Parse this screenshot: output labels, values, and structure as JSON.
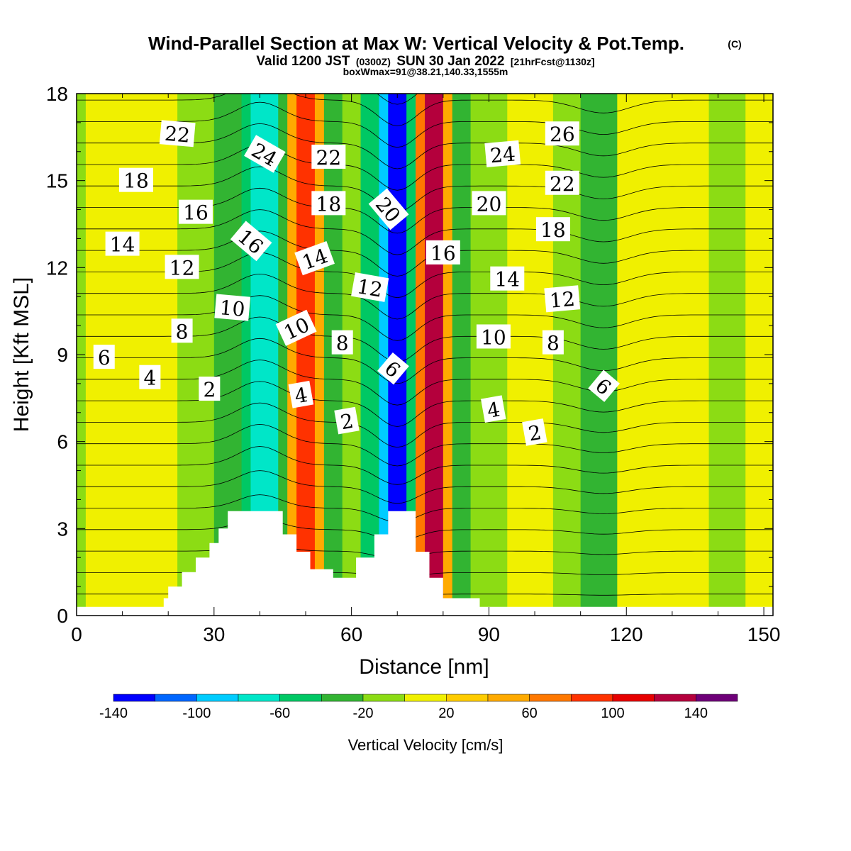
{
  "header": {
    "title": "Wind-Parallel Section at Max W: Vertical Velocity & Pot.Temp.",
    "title_mark": "(C)",
    "valid_prefix": "Valid 1200 JST",
    "valid_utc": "(0300Z)",
    "valid_date": "SUN 30 Jan 2022",
    "forecast": "[21hrFcst@1130z]",
    "box_info": "boxWmax=91@38.21,140.33,1555m"
  },
  "chart_data": {
    "type": "heatmap",
    "xlabel": "Distance [nm]",
    "ylabel": "Height [Kft MSL]",
    "xlim": [
      0,
      152
    ],
    "ylim": [
      0,
      18
    ],
    "x_ticks": [
      0,
      30,
      60,
      90,
      120,
      150
    ],
    "y_ticks": [
      0,
      3,
      6,
      9,
      12,
      15,
      18
    ],
    "colorbar": {
      "title": "Vertical Velocity [cm/s]",
      "levels": [
        -140,
        -120,
        -100,
        -80,
        -60,
        -40,
        -20,
        0,
        20,
        40,
        60,
        80,
        100,
        120,
        140,
        160
      ],
      "colors": [
        "#0000ff",
        "#0066ff",
        "#00ccff",
        "#00e6c8",
        "#00c864",
        "#32b432",
        "#8cdc14",
        "#f0f000",
        "#ffcc00",
        "#ffaa00",
        "#ff7800",
        "#ff3200",
        "#e60000",
        "#b4003c",
        "#6e0078"
      ],
      "tick_labels": [
        "-140",
        "-100",
        "-60",
        "-20",
        "20",
        "60",
        "100",
        "140"
      ]
    },
    "velocity_bands": [
      {
        "x": [
          0,
          2
        ],
        "w": -20
      },
      {
        "x": [
          2,
          14
        ],
        "w": 5
      },
      {
        "x": [
          14,
          22
        ],
        "w": 5
      },
      {
        "x": [
          22,
          30
        ],
        "w": -10
      },
      {
        "x": [
          30,
          36
        ],
        "w": -30
      },
      {
        "x": [
          36,
          38
        ],
        "w": -50
      },
      {
        "x": [
          38,
          44
        ],
        "w": -70
      },
      {
        "x": [
          44,
          46
        ],
        "w": -30
      },
      {
        "x": [
          46,
          48
        ],
        "w": 50
      },
      {
        "x": [
          48,
          52
        ],
        "w": 90
      },
      {
        "x": [
          52,
          54
        ],
        "w": 50
      },
      {
        "x": [
          54,
          58
        ],
        "w": -30
      },
      {
        "x": [
          58,
          62
        ],
        "w": -10
      },
      {
        "x": [
          62,
          66
        ],
        "w": -50
      },
      {
        "x": [
          66,
          68
        ],
        "w": -90
      },
      {
        "x": [
          68,
          72
        ],
        "w": -130
      },
      {
        "x": [
          72,
          74
        ],
        "w": -60
      },
      {
        "x": [
          74,
          76
        ],
        "w": 70
      },
      {
        "x": [
          76,
          80
        ],
        "w": 130
      },
      {
        "x": [
          80,
          82
        ],
        "w": 50
      },
      {
        "x": [
          82,
          86
        ],
        "w": -30
      },
      {
        "x": [
          86,
          94
        ],
        "w": -10
      },
      {
        "x": [
          94,
          104
        ],
        "w": 15
      },
      {
        "x": [
          104,
          110
        ],
        "w": -10
      },
      {
        "x": [
          110,
          118
        ],
        "w": -30
      },
      {
        "x": [
          118,
          126
        ],
        "w": 5
      },
      {
        "x": [
          126,
          138
        ],
        "w": 10
      },
      {
        "x": [
          138,
          146
        ],
        "w": -15
      },
      {
        "x": [
          146,
          152
        ],
        "w": 5
      }
    ],
    "terrain": [
      [
        0,
        0.3
      ],
      [
        19,
        0.3
      ],
      [
        19,
        0.6
      ],
      [
        20,
        0.6
      ],
      [
        20,
        1.0
      ],
      [
        23,
        1.0
      ],
      [
        23,
        1.5
      ],
      [
        26,
        1.5
      ],
      [
        26,
        2.0
      ],
      [
        29,
        2.0
      ],
      [
        29,
        2.5
      ],
      [
        31,
        2.5
      ],
      [
        31,
        3.0
      ],
      [
        33,
        3.0
      ],
      [
        33,
        3.6
      ],
      [
        36,
        3.6
      ],
      [
        36,
        3.6
      ],
      [
        45,
        3.6
      ],
      [
        45,
        2.8
      ],
      [
        48,
        2.8
      ],
      [
        48,
        2.2
      ],
      [
        51,
        2.2
      ],
      [
        51,
        1.6
      ],
      [
        56,
        1.6
      ],
      [
        56,
        1.3
      ],
      [
        61,
        1.3
      ],
      [
        61,
        2.0
      ],
      [
        65,
        2.0
      ],
      [
        65,
        2.8
      ],
      [
        68,
        2.8
      ],
      [
        68,
        3.6
      ],
      [
        74,
        3.6
      ],
      [
        74,
        2.2
      ],
      [
        77,
        2.2
      ],
      [
        77,
        1.3
      ],
      [
        80,
        1.3
      ],
      [
        80,
        0.6
      ],
      [
        88,
        0.6
      ],
      [
        88,
        0.3
      ],
      [
        152,
        0.3
      ]
    ],
    "contour_labels": [
      {
        "text": "22",
        "x": 22,
        "y": 16.6,
        "angle": 5
      },
      {
        "text": "24",
        "x": 41,
        "y": 15.9,
        "angle": 30
      },
      {
        "text": "22",
        "x": 55,
        "y": 15.8,
        "angle": 0
      },
      {
        "text": "24",
        "x": 93,
        "y": 15.9,
        "angle": -5
      },
      {
        "text": "26",
        "x": 106,
        "y": 16.6,
        "angle": 0
      },
      {
        "text": "18",
        "x": 13,
        "y": 15.0,
        "angle": 0
      },
      {
        "text": "16",
        "x": 26,
        "y": 13.9,
        "angle": 0
      },
      {
        "text": "18",
        "x": 55,
        "y": 14.2,
        "angle": 0
      },
      {
        "text": "20",
        "x": 68,
        "y": 14.0,
        "angle": 50
      },
      {
        "text": "20",
        "x": 90,
        "y": 14.2,
        "angle": 0
      },
      {
        "text": "22",
        "x": 106,
        "y": 14.9,
        "angle": 0
      },
      {
        "text": "14",
        "x": 10,
        "y": 12.8,
        "angle": 0
      },
      {
        "text": "16",
        "x": 38,
        "y": 12.9,
        "angle": 40
      },
      {
        "text": "18",
        "x": 104,
        "y": 13.3,
        "angle": 0
      },
      {
        "text": "12",
        "x": 23,
        "y": 12.0,
        "angle": 0
      },
      {
        "text": "14",
        "x": 52,
        "y": 12.3,
        "angle": -20
      },
      {
        "text": "16",
        "x": 80,
        "y": 12.5,
        "angle": 0
      },
      {
        "text": "14",
        "x": 94,
        "y": 11.6,
        "angle": 0
      },
      {
        "text": "12",
        "x": 64,
        "y": 11.3,
        "angle": 10
      },
      {
        "text": "12",
        "x": 106,
        "y": 10.9,
        "angle": -5
      },
      {
        "text": "10",
        "x": 34,
        "y": 10.6,
        "angle": 5
      },
      {
        "text": "10",
        "x": 48,
        "y": 9.9,
        "angle": -25
      },
      {
        "text": "8",
        "x": 23,
        "y": 9.8,
        "angle": 0
      },
      {
        "text": "10",
        "x": 91,
        "y": 9.6,
        "angle": 0
      },
      {
        "text": "8",
        "x": 58,
        "y": 9.4,
        "angle": 0
      },
      {
        "text": "8",
        "x": 104,
        "y": 9.4,
        "angle": 0
      },
      {
        "text": "6",
        "x": 6,
        "y": 8.9,
        "angle": 0
      },
      {
        "text": "6",
        "x": 69,
        "y": 8.5,
        "angle": 40
      },
      {
        "text": "4",
        "x": 16,
        "y": 8.2,
        "angle": 0
      },
      {
        "text": "6",
        "x": 115,
        "y": 7.9,
        "angle": 40
      },
      {
        "text": "2",
        "x": 29,
        "y": 7.8,
        "angle": 0
      },
      {
        "text": "4",
        "x": 49,
        "y": 7.6,
        "angle": -10
      },
      {
        "text": "4",
        "x": 91,
        "y": 7.1,
        "angle": -10
      },
      {
        "text": "2",
        "x": 59,
        "y": 6.7,
        "angle": -10
      },
      {
        "text": "2",
        "x": 100,
        "y": 6.3,
        "angle": -10
      }
    ]
  }
}
